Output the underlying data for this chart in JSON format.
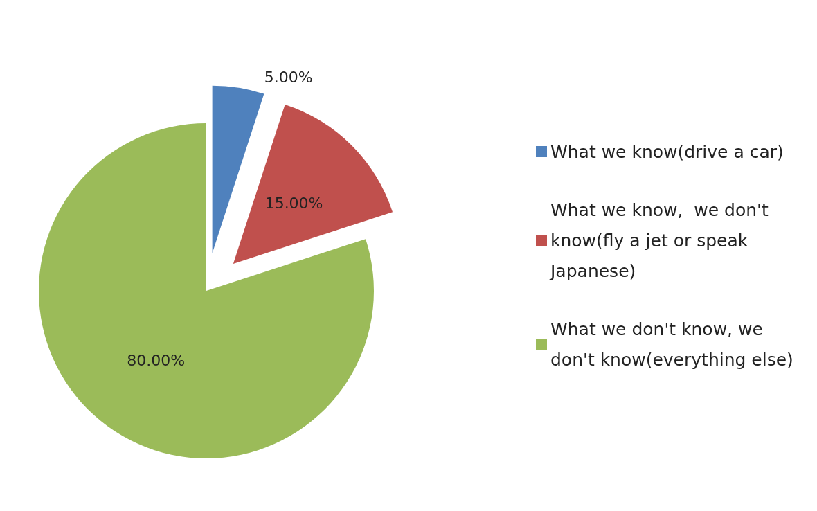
{
  "chart_data": {
    "type": "pie",
    "categories": [
      "What we know(drive a car)",
      "What we know,  we don't know(fly a jet or speak Japanese)",
      "What we don't know, we don't know(everything else)"
    ],
    "values": [
      5,
      15,
      80
    ],
    "colors": [
      "#4f81bd",
      "#c0504d",
      "#9bbb59"
    ],
    "value_labels": [
      "5.00%",
      "15.00%",
      "80.00%"
    ],
    "legend": "right"
  }
}
